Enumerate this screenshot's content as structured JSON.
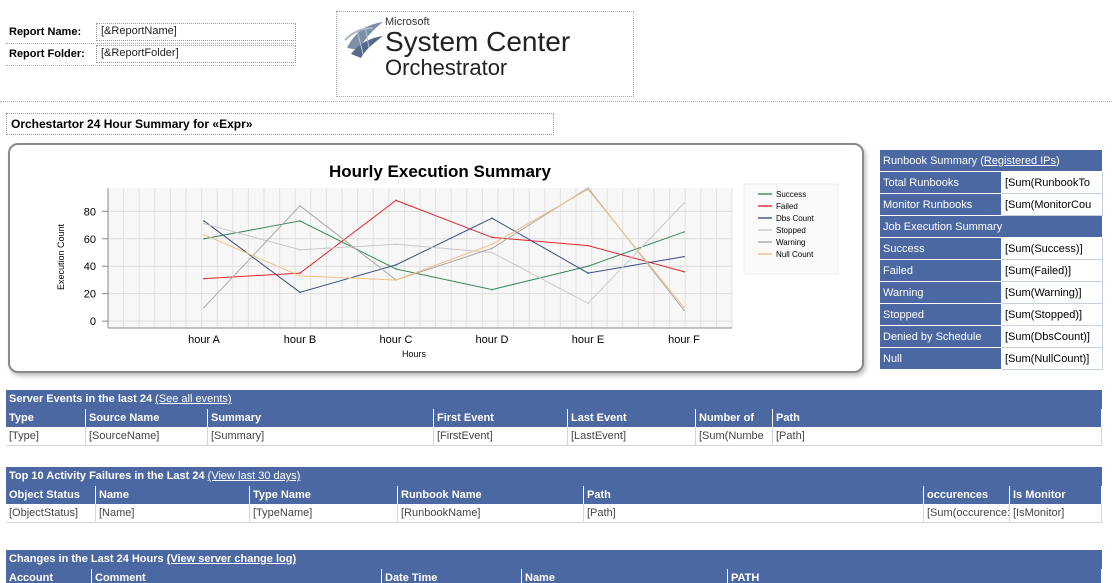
{
  "report": {
    "name_label": "Report Name:",
    "name_value": "[&ReportName]",
    "folder_label": "Report Folder:",
    "folder_value": "[&ReportFolder]"
  },
  "logo": {
    "brand": "Microsoft",
    "product_line1": "System Center",
    "product_line2": "Orchestrator"
  },
  "summary_title": "Orchestartor 24 Hour Summary for «Expr»",
  "chart_data": {
    "type": "line",
    "title": "Hourly Execution Summary",
    "xlabel": "Hours",
    "ylabel": "Execution Count",
    "categories": [
      "hour A",
      "hour B",
      "hour C",
      "hour D",
      "hour E",
      "hour F"
    ],
    "yticks": [
      "0",
      "20",
      "40",
      "60",
      "80"
    ],
    "ylim": [
      -5,
      97
    ],
    "grid": true,
    "legend_position": "right",
    "series": [
      {
        "name": "Success",
        "color": "#3a8a5a",
        "values": [
          60,
          73,
          38,
          23,
          40,
          65
        ]
      },
      {
        "name": "Failed",
        "color": "#e8262d",
        "values": [
          31,
          35,
          88,
          61,
          55,
          36
        ]
      },
      {
        "name": "Dbs Count",
        "color": "#3b4d84",
        "values": [
          73,
          21,
          41,
          75,
          35,
          47
        ]
      },
      {
        "name": "Stopped",
        "color": "#c8c8c8",
        "values": [
          71,
          52,
          56,
          50,
          13,
          86
        ]
      },
      {
        "name": "Warning",
        "color": "#a8a8a8",
        "values": [
          10,
          84,
          30,
          53,
          97,
          8
        ]
      },
      {
        "name": "Null Count",
        "color": "#f0c080",
        "values": [
          63,
          33,
          30,
          56,
          96,
          10
        ]
      }
    ]
  },
  "runbook_summary": {
    "header_prefix": "Runbook Summary (",
    "header_link": "Registered IPs",
    "header_suffix": ")",
    "rows": [
      {
        "label": "Total Runbooks",
        "value": "[Sum(RunbookTo"
      },
      {
        "label": "Monitor Runbooks",
        "value": "[Sum(MonitorCou"
      }
    ]
  },
  "job_summary": {
    "header": "Job Execution Summary",
    "rows": [
      {
        "label": "Success",
        "value": "[Sum(Success)]"
      },
      {
        "label": "Failed",
        "value": "[Sum(Failed)]"
      },
      {
        "label": "Warning",
        "value": "[Sum(Warning)]"
      },
      {
        "label": "Stopped",
        "value": "[Sum(Stopped)]"
      },
      {
        "label": "Denied by Schedule",
        "value": "[Sum(DbsCount)]"
      },
      {
        "label": "Null",
        "value": "[Sum(NullCount)]"
      }
    ]
  },
  "server_events": {
    "title": "Server Events in the last 24 ",
    "link": "(See all events)",
    "columns": [
      "Type",
      "Source Name",
      "Summary",
      "First Event",
      "Last Event",
      "Number of",
      "Path"
    ],
    "row": [
      "[Type]",
      "[SourceName]",
      "[Summary]",
      "[FirstEvent]",
      "[LastEvent]",
      "[Sum(Numbe",
      "[Path]"
    ]
  },
  "activity_failures": {
    "title": "Top 10 Activity Failures in the Last 24 ",
    "link": "(View last 30 days)",
    "columns": [
      "Object Status",
      "Name",
      "Type Name",
      "Runbook Name",
      "Path",
      "occurences",
      "Is Monitor"
    ],
    "row": [
      "[ObjectStatus]",
      "[Name]",
      "[TypeName]",
      "[RunbookName]",
      "[Path]",
      "[Sum(occurence:",
      "[IsMonitor]"
    ]
  },
  "changes": {
    "title": "Changes in the Last 24 Hours ",
    "link": "(View server change log)",
    "columns": [
      "Account",
      "Comment",
      "Date Time",
      "Name",
      "PATH"
    ]
  }
}
